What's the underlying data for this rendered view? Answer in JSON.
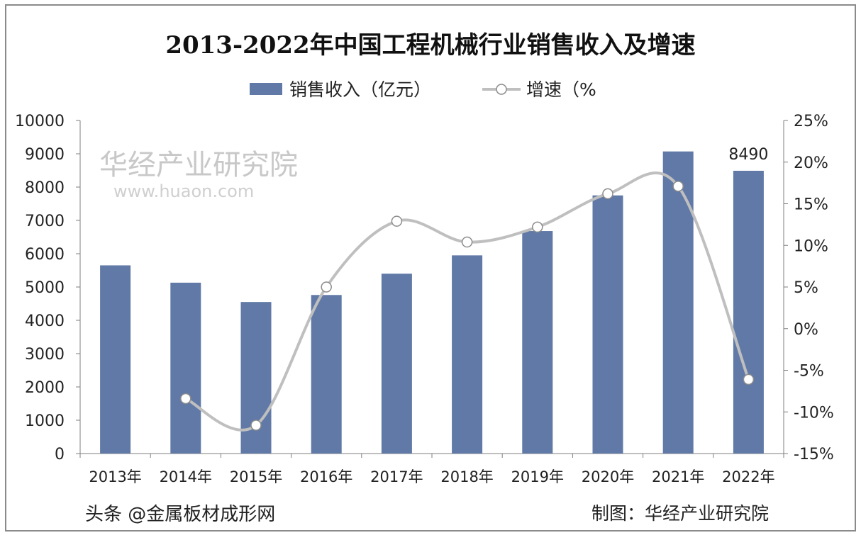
{
  "chart_data": {
    "type": "bar+line",
    "title": "2013-2022年中国工程机械行业销售收入及增速",
    "categories": [
      "2013年",
      "2014年",
      "2015年",
      "2016年",
      "2017年",
      "2018年",
      "2019年",
      "2020年",
      "2021年",
      "2022年"
    ],
    "series": [
      {
        "name": "销售收入（亿元）",
        "type": "bar",
        "axis": "left",
        "color": "#6079a6",
        "values": [
          5650,
          5130,
          4550,
          4760,
          5400,
          5950,
          6680,
          7750,
          9070,
          8490
        ]
      },
      {
        "name": "增速（%",
        "type": "line",
        "axis": "right",
        "color": "#bfbfbf",
        "values": [
          null,
          -8.4,
          -11.6,
          5.0,
          12.9,
          10.4,
          12.2,
          16.2,
          17.1,
          -6.1
        ]
      }
    ],
    "data_labels": [
      {
        "category": "2022年",
        "text": "8490"
      }
    ],
    "left_axis": {
      "ylim": [
        0,
        10000
      ],
      "ticks": [
        "0",
        "1000",
        "2000",
        "3000",
        "4000",
        "5000",
        "6000",
        "7000",
        "8000",
        "9000",
        "10000"
      ]
    },
    "right_axis": {
      "ylim": [
        -15,
        25
      ],
      "ticks": [
        "-15%",
        "-10%",
        "-5%",
        "0%",
        "5%",
        "10%",
        "15%",
        "20%",
        "25%"
      ]
    },
    "legend": "top",
    "grid": false
  },
  "source": "制图：华经产业研究院",
  "watermarks": {
    "publisher": "华经产业研究院",
    "url": "www.huaon.com",
    "account": "头条 @金属板材成形网"
  }
}
